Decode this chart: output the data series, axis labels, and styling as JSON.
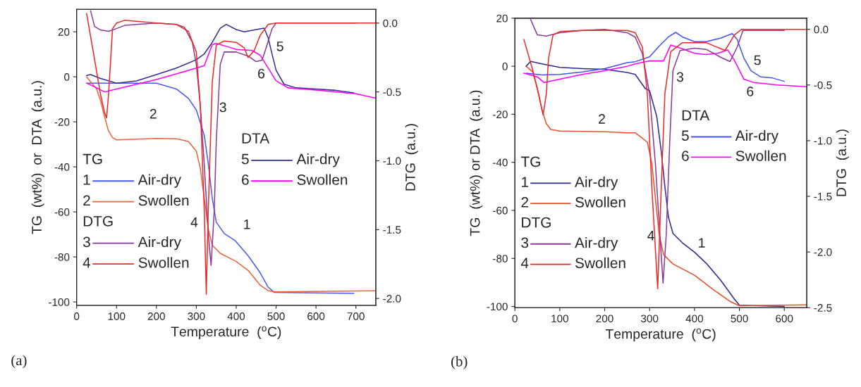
{
  "chart_data": [
    {
      "type": "line",
      "xlabel": "Temperature  ($^{o}$C)",
      "ylabel": "TG  (wt%)  or  DTA  (a.u.)",
      "y2label": "DTG  (a.u.)",
      "xlim": [
        0,
        750
      ],
      "xticks": [
        0,
        100,
        200,
        300,
        400,
        500,
        600,
        700
      ],
      "ylim": [
        -101.5,
        30
      ],
      "yticks": [
        -100,
        -80,
        -60,
        -40,
        -20,
        0,
        20
      ],
      "y2lim": [
        -2.05,
        0.1
      ],
      "y2ticks": [
        {
          "value": -2,
          "label": "-2.0"
        },
        {
          "value": -1.5,
          "label": "-1.5"
        },
        {
          "value": -1,
          "label": "-1.0"
        },
        {
          "value": -0.5,
          "label": "-0.5"
        },
        {
          "value": 0,
          "label": "0.0"
        }
      ],
      "grid": false,
      "legend": "left",
      "series": [
        {
          "name": "Air-dry",
          "color": "#4a5cf0",
          "x": [
            25,
            100,
            200,
            250,
            280,
            300,
            320,
            330,
            340,
            350,
            370,
            397,
            430,
            460,
            480,
            495,
            600,
            695
          ],
          "values": [
            -2.8,
            -2.8,
            -2.8,
            -5.4,
            -9.5,
            -14.7,
            -26,
            -38.5,
            -54,
            -64.5,
            -69.6,
            -72.7,
            -79.5,
            -87,
            -93.4,
            -95.7,
            -96,
            -96.2
          ]
        },
        {
          "name": "Swollen",
          "color": "#e8643c",
          "x": [
            25,
            50,
            60,
            70,
            80,
            90,
            100,
            200,
            250,
            280,
            300,
            310,
            320,
            330,
            340,
            360,
            400,
            430,
            460,
            480,
            500,
            750
          ],
          "values": [
            0,
            -5.4,
            -10.6,
            -17.8,
            -24,
            -27,
            -28,
            -27.4,
            -27.5,
            -28.7,
            -33,
            -40.6,
            -54,
            -67.6,
            -74.8,
            -78.4,
            -82,
            -86,
            -92.5,
            -95,
            -95.5,
            -95
          ]
        },
        {
          "name": "Air-dry",
          "color": "#8a3a9a",
          "axis": "y2",
          "x": [
            35,
            45,
            60,
            80,
            100,
            120,
            150,
            200,
            250,
            270,
            290,
            300,
            310,
            320,
            330,
            337,
            345,
            350,
            360,
            370,
            400,
            430,
            450,
            465,
            475,
            490,
            500,
            700
          ],
          "values": [
            0.09,
            -0.025,
            -0.05,
            -0.06,
            -0.04,
            -0.017,
            -0.01,
            0,
            -0.01,
            -0.03,
            -0.14,
            -0.3,
            -0.6,
            -1.03,
            -1.53,
            -1.76,
            -1.36,
            -0.86,
            -0.3,
            -0.21,
            -0.21,
            -0.24,
            -0.28,
            -0.27,
            -0.18,
            -0.04,
            0,
            0
          ]
        },
        {
          "name": "Swollen",
          "color": "#f02828",
          "axis": "y2",
          "x": [
            25,
            40,
            60,
            70,
            75,
            80,
            90,
            100,
            120,
            200,
            250,
            280,
            300,
            310,
            320,
            325,
            330,
            340,
            350,
            370,
            400,
            420,
            430,
            445,
            460,
            480,
            500,
            750
          ],
          "values": [
            0.07,
            -0.18,
            -0.52,
            -0.65,
            -0.69,
            -0.52,
            -0.04,
            0,
            0.02,
            0,
            -0.01,
            -0.06,
            -0.21,
            -0.6,
            -1.36,
            -1.97,
            -1.36,
            -0.43,
            -0.16,
            -0.13,
            -0.14,
            -0.18,
            -0.25,
            -0.2,
            -0.09,
            -0.01,
            0,
            0
          ]
        },
        {
          "name": "Air-dry",
          "color": "#303090",
          "x": [
            25,
            35,
            60,
            100,
            150,
            200,
            250,
            300,
            320,
            340,
            360,
            375,
            400,
            420,
            450,
            470,
            480,
            490,
            500,
            520,
            550,
            600,
            650,
            695
          ],
          "values": [
            0.6,
            1,
            -0.7,
            -2.8,
            -1.8,
            1,
            3.9,
            7.6,
            10.2,
            15.3,
            21.6,
            23.3,
            21,
            20,
            21,
            21.6,
            17.4,
            10,
            2.9,
            -3.3,
            -4.9,
            -5.4,
            -6,
            -7.1
          ]
        },
        {
          "name": "Swollen",
          "color": "#ff00ff",
          "x": [
            25,
            50,
            70,
            100,
            150,
            200,
            250,
            300,
            320,
            340,
            350,
            380,
            400,
            440,
            460,
            480,
            500,
            530,
            600,
            700,
            750
          ],
          "values": [
            -2.8,
            -4.9,
            -6.7,
            -5.4,
            -3.3,
            -1.2,
            1.3,
            3.9,
            5,
            14.3,
            14.8,
            13.3,
            12.2,
            11.7,
            9.6,
            3.9,
            -1.8,
            -4.9,
            -5.9,
            -7.5,
            -9.5
          ]
        }
      ],
      "annotations": [
        "1",
        "2",
        "3",
        "4",
        "5",
        "6",
        "TG",
        "DTG",
        "DTA",
        "(a)"
      ]
    },
    {
      "type": "line",
      "xlabel": "Temperature  ($^{o}$C)",
      "ylabel": "TG  (wt%) or DTA  (a.u.)",
      "y2label": "DTG  (a.u.)",
      "xlim": [
        0,
        650
      ],
      "xticks": [
        0,
        100,
        200,
        300,
        400,
        500,
        600
      ],
      "ylim": [
        -100.5,
        20
      ],
      "yticks": [
        -100,
        -80,
        -60,
        -40,
        -20,
        0,
        20
      ],
      "y2lim": [
        -2.5,
        0.1
      ],
      "y2ticks": [
        {
          "value": -2.5,
          "label": "-2.5"
        },
        {
          "value": -2,
          "label": "-2.0"
        },
        {
          "value": -1.5,
          "label": "-1.5"
        },
        {
          "value": -1,
          "label": "-1.0"
        },
        {
          "value": -0.5,
          "label": "-0.5"
        },
        {
          "value": 0,
          "label": "0.0"
        }
      ],
      "grid": false,
      "legend": "left",
      "series": [
        {
          "name": "Air-dry",
          "color": "#2b2b8c",
          "x": [
            25,
            35,
            60,
            100,
            150,
            200,
            250,
            268,
            290,
            300,
            316,
            326,
            334,
            342,
            352,
            373,
            400,
            426,
            458,
            489,
            500,
            600
          ],
          "values": [
            0,
            2,
            1,
            -0.5,
            -1,
            -1.3,
            -2.6,
            -3.4,
            -9.2,
            -10.2,
            -21,
            -35.5,
            -50,
            -62.8,
            -69.6,
            -73.5,
            -77.4,
            -82,
            -89,
            -97,
            -99.5,
            -100
          ]
        },
        {
          "name": "Swollen",
          "color": "#e8502c",
          "x": [
            25,
            40,
            50,
            60,
            70,
            80,
            100,
            200,
            250,
            268,
            295,
            305,
            313,
            321,
            331,
            352,
            400,
            442,
            480,
            500,
            650
          ],
          "values": [
            0,
            -2.4,
            -9.2,
            -18,
            -23.9,
            -26.3,
            -27,
            -27.3,
            -27.7,
            -27.7,
            -31.6,
            -40.4,
            -55,
            -69.6,
            -78.4,
            -82.3,
            -87,
            -93,
            -98,
            -99.7,
            -99.3
          ]
        },
        {
          "name": "Air-dry",
          "color": "#8a3a9a",
          "axis": "y2",
          "x": [
            35,
            50,
            70,
            100,
            150,
            200,
            250,
            268,
            284,
            300,
            313,
            323,
            330,
            337,
            345,
            352,
            368,
            400,
            426,
            458,
            479,
            495,
            508,
            600
          ],
          "values": [
            0.09,
            -0.05,
            -0.06,
            -0.03,
            -0.01,
            0,
            -0.03,
            -0.07,
            -0.22,
            -0.58,
            -1.21,
            -1.85,
            -2.28,
            -1.85,
            -1,
            -0.37,
            -0.19,
            -0.17,
            -0.18,
            -0.25,
            -0.29,
            -0.16,
            -0.01,
            -0.01
          ]
        },
        {
          "name": "Swollen",
          "color": "#f02828",
          "axis": "y2",
          "x": [
            20,
            40,
            55,
            63,
            70,
            75,
            85,
            100,
            150,
            200,
            250,
            268,
            284,
            295,
            305,
            318,
            326,
            334,
            347,
            373,
            426,
            468,
            489,
            505,
            650
          ],
          "values": [
            -0.09,
            -0.37,
            -0.62,
            -0.77,
            -0.58,
            -0.26,
            -0.05,
            -0.02,
            -0.01,
            -0.01,
            -0.01,
            -0.03,
            -0.16,
            -0.58,
            -1.42,
            -2.33,
            -1.42,
            -0.58,
            -0.2,
            -0.12,
            -0.12,
            -0.19,
            -0.05,
            0,
            0
          ]
        },
        {
          "name": "Air-dry",
          "color": "#4455ee",
          "x": [
            25,
            60,
            100,
            150,
            200,
            250,
            268,
            300,
            321,
            342,
            358,
            373,
            400,
            426,
            458,
            484,
            495,
            510,
            526,
            547,
            574,
            600
          ],
          "values": [
            -2.9,
            -3.6,
            -3.4,
            -2.4,
            -1,
            1.5,
            1.9,
            3.9,
            8.3,
            12.2,
            14.1,
            12.2,
            10.2,
            10.2,
            11.7,
            13.6,
            11.2,
            3.4,
            -1.9,
            -4.4,
            -4.9,
            -6.3
          ]
        },
        {
          "name": "Swollen",
          "color": "#ff00ff",
          "x": [
            20,
            50,
            65,
            100,
            150,
            200,
            250,
            268,
            300,
            331,
            347,
            373,
            400,
            426,
            452,
            474,
            489,
            510,
            532,
            584,
            650
          ],
          "values": [
            -2.9,
            -4.4,
            -6.8,
            -5.4,
            -3.4,
            -1.9,
            0,
            1,
            2.2,
            2.2,
            8.8,
            7.3,
            5.4,
            4.9,
            5.4,
            6.8,
            2.4,
            -5.4,
            -6.8,
            -7.8,
            -8.5
          ]
        }
      ],
      "annotations": [
        "1",
        "2",
        "3",
        "4",
        "5",
        "6",
        "TG",
        "DTG",
        "DTA",
        "(b)"
      ]
    }
  ]
}
